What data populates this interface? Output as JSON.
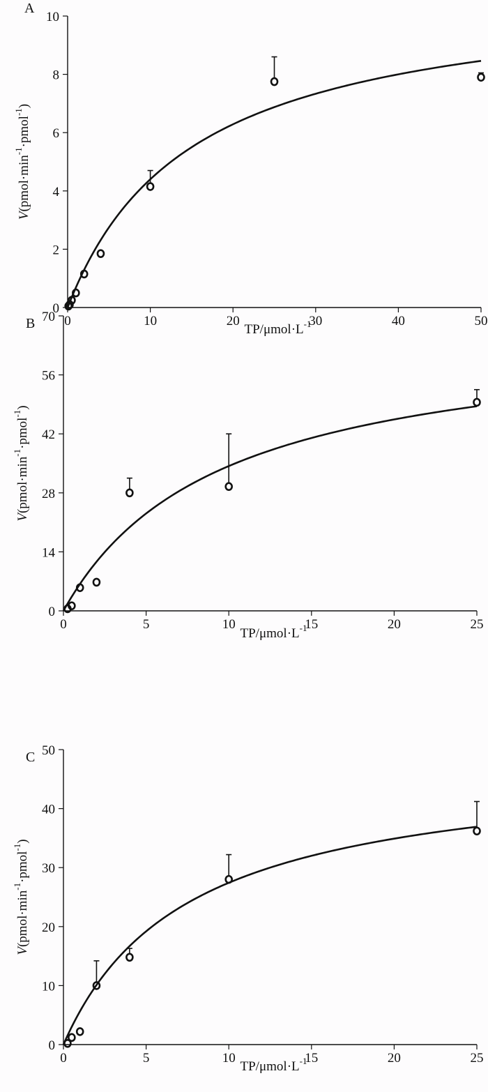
{
  "chart_data": [
    {
      "type": "scatter",
      "panel_label": "A",
      "xlabel_main": "TP/μmol·L",
      "xlabel_sup": "-1",
      "ylabel_italic": "V",
      "ylabel_parts": [
        "(pmol·min",
        "-1",
        "·pmol",
        "-1",
        ")"
      ],
      "xlim": [
        0,
        50
      ],
      "ylim": [
        0,
        10
      ],
      "xticks": [
        0,
        10,
        20,
        30,
        40,
        50
      ],
      "yticks": [
        0,
        2,
        4,
        6,
        8,
        10
      ],
      "points": [
        {
          "x": 0.1,
          "y": 0.05,
          "err": 0
        },
        {
          "x": 0.25,
          "y": 0.1,
          "err": 0
        },
        {
          "x": 0.5,
          "y": 0.25,
          "err": 0
        },
        {
          "x": 1,
          "y": 0.5,
          "err": 0
        },
        {
          "x": 2,
          "y": 1.15,
          "err": 0
        },
        {
          "x": 4,
          "y": 1.85,
          "err": 0
        },
        {
          "x": 10,
          "y": 4.15,
          "err": 0.55
        },
        {
          "x": 25,
          "y": 7.75,
          "err": 0.85
        },
        {
          "x": 50,
          "y": 7.9,
          "err": 0.15
        }
      ],
      "fit": {
        "vmax": 11.0,
        "km": 15.0,
        "x_end": 50
      }
    },
    {
      "type": "scatter",
      "panel_label": "B",
      "xlabel_main": "TP/μmol·L",
      "xlabel_sup": "-1",
      "ylabel_italic": "V",
      "ylabel_parts": [
        "(pmol·min",
        "-1",
        "·pmol",
        "-1",
        ")"
      ],
      "xlim": [
        0,
        25
      ],
      "ylim": [
        0,
        70
      ],
      "xticks": [
        0,
        5,
        10,
        15,
        20,
        25
      ],
      "yticks": [
        0,
        14,
        28,
        42,
        56,
        70
      ],
      "points": [
        {
          "x": 0.25,
          "y": 0.5,
          "err": 0
        },
        {
          "x": 0.5,
          "y": 1.2,
          "err": 0
        },
        {
          "x": 1,
          "y": 5.5,
          "err": 0
        },
        {
          "x": 2,
          "y": 6.8,
          "err": 0
        },
        {
          "x": 4,
          "y": 28,
          "err": 3.5
        },
        {
          "x": 10,
          "y": 29.5,
          "err": 12.5
        },
        {
          "x": 25,
          "y": 49.5,
          "err": 3.0
        }
      ],
      "fit": {
        "vmax": 67.0,
        "km": 9.5,
        "x_end": 25
      }
    },
    {
      "type": "scatter",
      "panel_label": "C",
      "xlabel_main": "TP/μmol·L",
      "xlabel_sup": "-1",
      "ylabel_italic": "V",
      "ylabel_parts": [
        "(pmol·min",
        "-1",
        "·pmol",
        "-1",
        ")"
      ],
      "xlim": [
        0,
        25
      ],
      "ylim": [
        0,
        50
      ],
      "xticks": [
        0,
        5,
        10,
        15,
        20,
        25
      ],
      "yticks": [
        0,
        10,
        20,
        30,
        40,
        50
      ],
      "points": [
        {
          "x": 0.25,
          "y": 0.2,
          "err": 0
        },
        {
          "x": 0.5,
          "y": 1.2,
          "err": 0
        },
        {
          "x": 1,
          "y": 2.2,
          "err": 0
        },
        {
          "x": 2,
          "y": 10,
          "err": 4.2
        },
        {
          "x": 4,
          "y": 14.8,
          "err": 1.5
        },
        {
          "x": 10,
          "y": 28,
          "err": 4.2
        },
        {
          "x": 25,
          "y": 36.2,
          "err": 5.0
        }
      ],
      "fit": {
        "vmax": 48.0,
        "km": 7.5,
        "x_end": 25
      }
    }
  ]
}
